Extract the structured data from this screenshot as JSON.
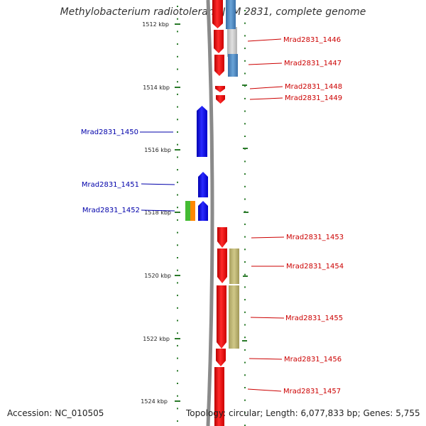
{
  "title": "Methylobacterium radiotolerans JCM 2831, complete genome",
  "footer": {
    "accession": "Accession: NC_010505",
    "topology": "Topology: circular; Length: 6,077,833 bp; Genes: 5,755"
  },
  "colors": {
    "forward_gene": "#ee1111",
    "reverse_gene": "#1111ee",
    "forward_label": "#cc0000",
    "reverse_label": "#0000aa",
    "backbone": "#888888",
    "tick": "#2a7a2a",
    "steelblue_feature": "#4a86c0",
    "khaki_feature": "#b8b070",
    "green_feature": "#44bb33",
    "orange_feature": "#ff8800",
    "gray_feature": "#c0c0c0"
  },
  "ticks": [
    "1512 kbp",
    "1514 kbp",
    "1516 kbp",
    "1518 kbp",
    "1520 kbp",
    "1522 kbp",
    "1524 kbp"
  ],
  "genes": [
    {
      "name": "Mrad2831_1446",
      "strand": "forward"
    },
    {
      "name": "Mrad2831_1447",
      "strand": "forward"
    },
    {
      "name": "Mrad2831_1448",
      "strand": "forward"
    },
    {
      "name": "Mrad2831_1449",
      "strand": "forward"
    },
    {
      "name": "Mrad2831_1450",
      "strand": "reverse"
    },
    {
      "name": "Mrad2831_1451",
      "strand": "reverse"
    },
    {
      "name": "Mrad2831_1452",
      "strand": "reverse"
    },
    {
      "name": "Mrad2831_1453",
      "strand": "forward"
    },
    {
      "name": "Mrad2831_1454",
      "strand": "forward"
    },
    {
      "name": "Mrad2831_1455",
      "strand": "forward"
    },
    {
      "name": "Mrad2831_1456",
      "strand": "forward"
    },
    {
      "name": "Mrad2831_1457",
      "strand": "forward"
    }
  ]
}
